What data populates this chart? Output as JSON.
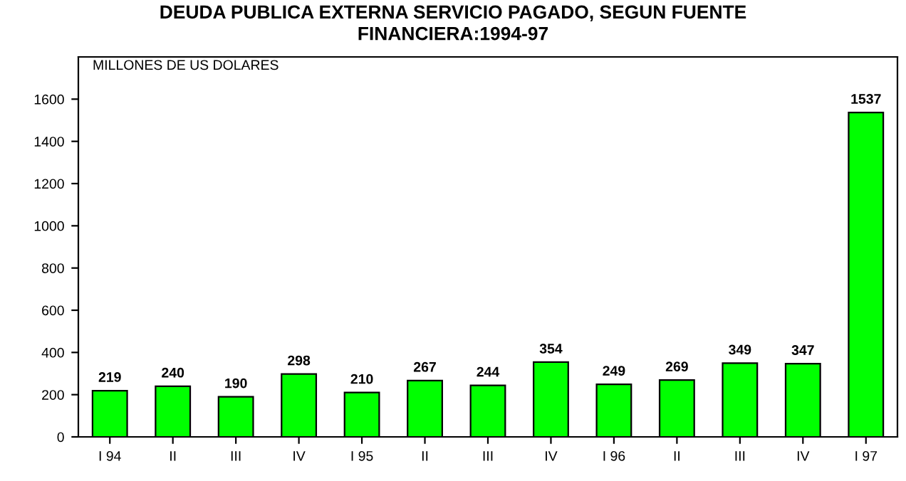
{
  "chart_data": {
    "type": "bar",
    "title": "DEUDA PUBLICA EXTERNA SERVICIO PAGADO, SEGUN FUENTE\nFINANCIERA:1994-97",
    "ylabel": "MILLONES DE US DOLARES",
    "categories": [
      "I 94",
      "II",
      "III",
      "IV",
      "I 95",
      "II",
      "III",
      "IV",
      "I 96",
      "II",
      "III",
      "IV",
      "I 97"
    ],
    "values": [
      219,
      240,
      190,
      298,
      210,
      267,
      244,
      354,
      249,
      269,
      349,
      347,
      1537
    ],
    "color": "#00ff00",
    "ylim": [
      0,
      1800
    ],
    "yticks": [
      0,
      200,
      400,
      600,
      800,
      1000,
      1200,
      1400,
      1600
    ],
    "data_labels": true,
    "grid": false,
    "legend": false
  }
}
